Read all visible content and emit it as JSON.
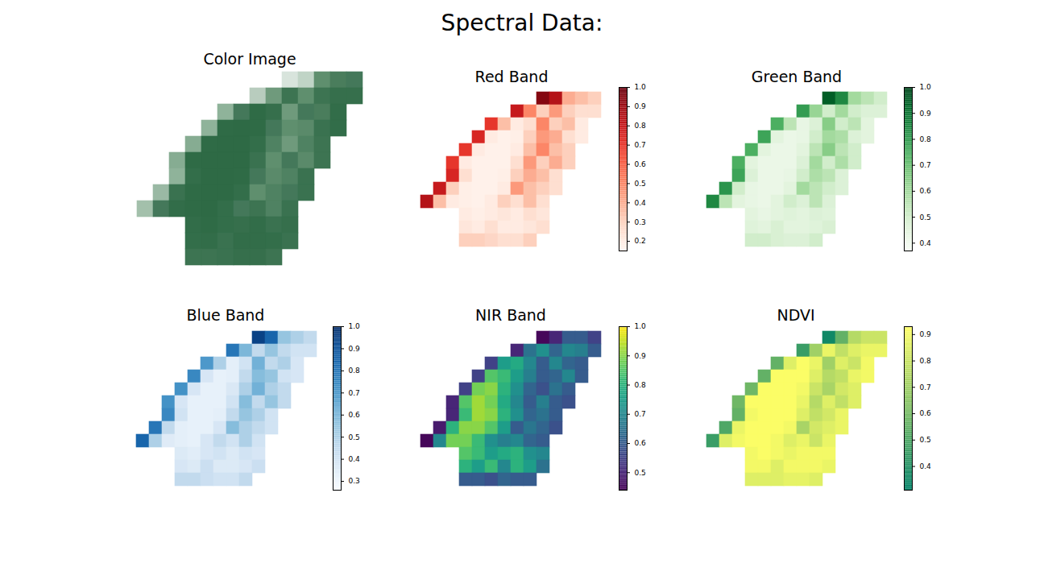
{
  "title": "Spectral Data:",
  "chart_data": [
    {
      "type": "image",
      "title": "Color Image",
      "tick_labels": false,
      "cells": [
        [
          null,
          null,
          null,
          null,
          null,
          null,
          null,
          null,
          null,
          "#d8e4dc",
          "#c0d4c6",
          "#5f8f6e",
          "#4a7d5c",
          "#44785a"
        ],
        [
          null,
          null,
          null,
          null,
          null,
          null,
          null,
          "#b8ccbe",
          "#6f9a7c",
          "#3d7452",
          "#5f8f6e",
          "#3d7452",
          "#366f4c",
          "#366f4c"
        ],
        [
          null,
          null,
          null,
          null,
          null,
          "#8fb39a",
          "#44785a",
          "#2f6b46",
          "#366f4c",
          "#6f9a7c",
          "#44785a",
          "#4a7d5c",
          "#326d49",
          null
        ],
        [
          null,
          null,
          null,
          null,
          "#8fb39a",
          "#2f6b46",
          "#2e6a45",
          "#2f6b46",
          "#44785a",
          "#5f8f6e",
          "#5a8a6a",
          "#3a7250",
          "#326d49",
          null
        ],
        [
          null,
          null,
          null,
          "#86ac92",
          "#2f6b46",
          "#2e6a45",
          "#2e6a45",
          "#336e4a",
          "#4f8262",
          "#6f9a7c",
          "#4f8262",
          "#3d7452",
          null,
          null
        ],
        [
          null,
          null,
          "#86ac92",
          "#2f6b46",
          "#2e6a45",
          "#2e6a45",
          "#2e6a45",
          "#3a7250",
          "#5f8f6e",
          "#44785a",
          "#5a8a6a",
          "#3d7452",
          null,
          null
        ],
        [
          null,
          null,
          "#8fb39a",
          "#336e4a",
          "#2e6a45",
          "#2e6a45",
          "#2f6b46",
          "#44785a",
          "#5a8a6a",
          "#4f8262",
          "#3a7250",
          null,
          null,
          null
        ],
        [
          null,
          "#9ab9a4",
          "#3a7250",
          "#2f6b46",
          "#2e6a45",
          "#2e6a45",
          "#336e4a",
          "#5f8f6e",
          "#4f8262",
          "#44785a",
          "#3a7250",
          null,
          null,
          null
        ],
        [
          "#a3c0ab",
          "#44785a",
          "#326d49",
          "#2f6b46",
          "#2e6a45",
          "#336e4a",
          "#44785a",
          "#3d7452",
          "#4f8262",
          "#3a7250",
          null,
          null,
          null,
          null
        ],
        [
          null,
          null,
          null,
          "#326d49",
          "#2f6b46",
          "#336e4a",
          "#366f4c",
          "#326d49",
          "#3a7250",
          "#366f4c",
          null,
          null,
          null,
          null
        ],
        [
          null,
          null,
          null,
          "#336e4a",
          "#326d49",
          "#3a7250",
          "#326d49",
          "#326d49",
          "#336e4a",
          "#3a7250",
          null,
          null,
          null,
          null
        ],
        [
          null,
          null,
          null,
          "#3d7452",
          "#3d7452",
          "#3a7250",
          "#366f4c",
          "#366f4c",
          "#3d7452",
          null,
          null,
          null,
          null,
          null
        ]
      ]
    },
    {
      "type": "heatmap",
      "title": "Red Band",
      "tick_labels": false,
      "color": "Reds",
      "colorbar_range": [
        0.15,
        1.0
      ],
      "colorbar_ticks": [
        0.2,
        0.3,
        0.4,
        0.5,
        0.6,
        0.7,
        0.8,
        0.9,
        {
          "value": 1.0,
          "label": "1.0"
        }
      ],
      "cells": [
        [
          null,
          null,
          null,
          null,
          null,
          null,
          null,
          null,
          null,
          0.95,
          0.85,
          0.4,
          0.35,
          0.3
        ],
        [
          null,
          null,
          null,
          null,
          null,
          null,
          null,
          0.8,
          0.5,
          0.3,
          0.45,
          0.3,
          0.25,
          0.25
        ],
        [
          null,
          null,
          null,
          null,
          null,
          0.7,
          0.35,
          0.2,
          0.25,
          0.5,
          0.3,
          0.35,
          0.2,
          null
        ],
        [
          null,
          null,
          null,
          null,
          0.75,
          0.2,
          0.17,
          0.18,
          0.3,
          0.45,
          0.4,
          0.25,
          0.2,
          null
        ],
        [
          null,
          null,
          null,
          0.7,
          0.2,
          0.17,
          0.17,
          0.2,
          0.35,
          0.5,
          0.35,
          0.3,
          null,
          null
        ],
        [
          null,
          null,
          0.7,
          0.2,
          0.17,
          0.17,
          0.17,
          0.25,
          0.45,
          0.3,
          0.4,
          0.3,
          null,
          null
        ],
        [
          null,
          null,
          0.75,
          0.25,
          0.17,
          0.17,
          0.18,
          0.3,
          0.4,
          0.35,
          0.25,
          null,
          null,
          null
        ],
        [
          null,
          0.8,
          0.3,
          0.18,
          0.17,
          0.17,
          0.2,
          0.45,
          0.35,
          0.3,
          0.25,
          null,
          null,
          null
        ],
        [
          0.85,
          0.35,
          0.2,
          0.18,
          0.17,
          0.2,
          0.3,
          0.25,
          0.35,
          0.25,
          null,
          null,
          null,
          null
        ],
        [
          null,
          null,
          null,
          0.2,
          0.18,
          0.2,
          0.22,
          0.2,
          0.25,
          0.22,
          null,
          null,
          null,
          null
        ],
        [
          null,
          null,
          null,
          0.22,
          0.2,
          0.25,
          0.2,
          0.2,
          0.22,
          0.25,
          null,
          null,
          null,
          null
        ],
        [
          null,
          null,
          null,
          0.3,
          0.3,
          0.28,
          0.25,
          0.25,
          0.3,
          null,
          null,
          null,
          null,
          null
        ]
      ]
    },
    {
      "type": "heatmap",
      "title": "Green Band",
      "tick_labels": false,
      "color": "Greens",
      "colorbar_range": [
        0.37,
        1.0
      ],
      "colorbar_ticks": [
        0.4,
        0.5,
        0.6,
        0.7,
        0.8,
        0.9,
        {
          "value": 1.0,
          "label": "1.0"
        }
      ],
      "cells": [
        [
          null,
          null,
          null,
          null,
          null,
          null,
          null,
          null,
          null,
          0.95,
          0.85,
          0.6,
          0.55,
          0.5
        ],
        [
          null,
          null,
          null,
          null,
          null,
          null,
          null,
          0.8,
          0.62,
          0.5,
          0.6,
          0.5,
          0.47,
          0.47
        ],
        [
          null,
          null,
          null,
          null,
          null,
          0.75,
          0.55,
          0.43,
          0.47,
          0.65,
          0.5,
          0.55,
          0.45,
          null
        ],
        [
          null,
          null,
          null,
          null,
          0.78,
          0.45,
          0.42,
          0.43,
          0.5,
          0.6,
          0.58,
          0.47,
          0.45,
          null
        ],
        [
          null,
          null,
          null,
          0.75,
          0.45,
          0.42,
          0.42,
          0.45,
          0.55,
          0.65,
          0.55,
          0.5,
          null,
          null
        ],
        [
          null,
          null,
          0.75,
          0.45,
          0.42,
          0.42,
          0.42,
          0.47,
          0.6,
          0.5,
          0.58,
          0.5,
          null,
          null
        ],
        [
          null,
          null,
          0.78,
          0.47,
          0.42,
          0.42,
          0.43,
          0.5,
          0.58,
          0.55,
          0.47,
          null,
          null,
          null
        ],
        [
          null,
          0.82,
          0.5,
          0.43,
          0.42,
          0.42,
          0.45,
          0.6,
          0.55,
          0.5,
          0.47,
          null,
          null,
          null
        ],
        [
          0.85,
          0.55,
          0.45,
          0.43,
          0.42,
          0.45,
          0.5,
          0.47,
          0.55,
          0.47,
          null,
          null,
          null,
          null
        ],
        [
          null,
          null,
          null,
          0.45,
          0.43,
          0.45,
          0.46,
          0.45,
          0.47,
          0.46,
          null,
          null,
          null,
          null
        ],
        [
          null,
          null,
          null,
          0.46,
          0.45,
          0.48,
          0.45,
          0.45,
          0.46,
          0.48,
          null,
          null,
          null,
          null
        ],
        [
          null,
          null,
          null,
          0.5,
          0.5,
          0.48,
          0.47,
          0.47,
          0.5,
          null,
          null,
          null,
          null,
          null
        ]
      ]
    },
    {
      "type": "heatmap",
      "title": "Blue Band",
      "tick_labels": false,
      "color": "Blues",
      "colorbar_range": [
        0.26,
        1.0
      ],
      "colorbar_ticks": [
        0.3,
        0.4,
        0.5,
        0.6,
        0.7,
        0.8,
        0.9,
        {
          "value": 1.0,
          "label": "1.0"
        }
      ],
      "cells": [
        [
          null,
          null,
          null,
          null,
          null,
          null,
          null,
          null,
          null,
          0.95,
          0.85,
          0.55,
          0.5,
          0.45
        ],
        [
          null,
          null,
          null,
          null,
          null,
          null,
          null,
          0.8,
          0.6,
          0.45,
          0.55,
          0.45,
          0.4,
          0.4
        ],
        [
          null,
          null,
          null,
          null,
          null,
          0.7,
          0.5,
          0.33,
          0.4,
          0.62,
          0.45,
          0.5,
          0.38,
          null
        ],
        [
          null,
          null,
          null,
          null,
          0.75,
          0.38,
          0.32,
          0.33,
          0.45,
          0.58,
          0.55,
          0.4,
          0.38,
          null
        ],
        [
          null,
          null,
          null,
          0.72,
          0.38,
          0.32,
          0.32,
          0.37,
          0.5,
          0.62,
          0.5,
          0.45,
          null,
          null
        ],
        [
          null,
          null,
          0.72,
          0.38,
          0.32,
          0.32,
          0.32,
          0.4,
          0.58,
          0.45,
          0.55,
          0.45,
          null,
          null
        ],
        [
          null,
          null,
          0.75,
          0.4,
          0.32,
          0.32,
          0.33,
          0.45,
          0.55,
          0.5,
          0.4,
          null,
          null,
          null
        ],
        [
          null,
          0.8,
          0.45,
          0.33,
          0.32,
          0.32,
          0.38,
          0.58,
          0.5,
          0.45,
          0.4,
          null,
          null,
          null
        ],
        [
          0.85,
          0.5,
          0.35,
          0.33,
          0.32,
          0.38,
          0.45,
          0.4,
          0.5,
          0.4,
          null,
          null,
          null,
          null
        ],
        [
          null,
          null,
          null,
          0.36,
          0.34,
          0.38,
          0.4,
          0.36,
          0.4,
          0.38,
          null,
          null,
          null,
          null
        ],
        [
          null,
          null,
          null,
          0.38,
          0.36,
          0.42,
          0.36,
          0.36,
          0.38,
          0.42,
          null,
          null,
          null,
          null
        ],
        [
          null,
          null,
          null,
          0.45,
          0.45,
          0.42,
          0.4,
          0.4,
          0.45,
          null,
          null,
          null,
          null,
          null
        ]
      ]
    },
    {
      "type": "heatmap",
      "title": "NIR Band",
      "tick_labels": false,
      "color": "Viridis",
      "colorbar_range": [
        0.44,
        1.0
      ],
      "colorbar_ticks": [
        0.5,
        0.6,
        0.7,
        0.8,
        0.9,
        {
          "value": 1.0,
          "label": "1.0"
        }
      ],
      "cells": [
        [
          null,
          null,
          null,
          null,
          null,
          null,
          null,
          null,
          null,
          0.45,
          0.5,
          0.6,
          0.6,
          0.55
        ],
        [
          null,
          null,
          null,
          null,
          null,
          null,
          null,
          0.5,
          0.65,
          0.72,
          0.62,
          0.7,
          0.68,
          0.6
        ],
        [
          null,
          null,
          null,
          null,
          null,
          0.55,
          0.75,
          0.78,
          0.7,
          0.6,
          0.7,
          0.62,
          0.6,
          null
        ],
        [
          null,
          null,
          null,
          null,
          0.55,
          0.85,
          0.82,
          0.75,
          0.68,
          0.6,
          0.62,
          0.7,
          0.6,
          null
        ],
        [
          null,
          null,
          null,
          0.55,
          0.88,
          0.9,
          0.8,
          0.72,
          0.62,
          0.58,
          0.65,
          0.6,
          null,
          null
        ],
        [
          null,
          null,
          0.5,
          0.85,
          0.92,
          0.88,
          0.78,
          0.7,
          0.6,
          0.68,
          0.6,
          0.58,
          null,
          null
        ],
        [
          null,
          null,
          0.5,
          0.82,
          0.92,
          0.9,
          0.8,
          0.72,
          0.62,
          0.65,
          0.6,
          null,
          null,
          null
        ],
        [
          null,
          0.48,
          0.8,
          0.9,
          0.9,
          0.85,
          0.75,
          0.6,
          0.66,
          0.62,
          0.58,
          null,
          null,
          null
        ],
        [
          0.45,
          0.7,
          0.88,
          0.88,
          0.82,
          0.72,
          0.68,
          0.7,
          0.62,
          0.6,
          null,
          null,
          null,
          null
        ],
        [
          null,
          null,
          null,
          0.85,
          0.82,
          0.75,
          0.78,
          0.8,
          0.72,
          0.7,
          null,
          null,
          null,
          null
        ],
        [
          null,
          null,
          null,
          0.8,
          0.75,
          0.82,
          0.7,
          0.8,
          0.75,
          0.65,
          null,
          null,
          null,
          null
        ],
        [
          null,
          null,
          null,
          0.6,
          0.6,
          0.58,
          0.62,
          0.6,
          0.6,
          null,
          null,
          null,
          null,
          null
        ]
      ]
    },
    {
      "type": "heatmap",
      "title": "NDVI",
      "tick_labels": false,
      "color": "summer",
      "colorbar_range": [
        0.31,
        0.93
      ],
      "colorbar_ticks": [
        0.4,
        0.5,
        0.6,
        0.7,
        0.8,
        0.9
      ],
      "cells": [
        [
          null,
          null,
          null,
          null,
          null,
          null,
          null,
          null,
          null,
          0.35,
          0.55,
          0.75,
          0.8,
          0.8
        ],
        [
          null,
          null,
          null,
          null,
          null,
          null,
          null,
          0.45,
          0.7,
          0.88,
          0.78,
          0.85,
          0.88,
          0.88
        ],
        [
          null,
          null,
          null,
          null,
          null,
          0.55,
          0.85,
          0.92,
          0.88,
          0.7,
          0.85,
          0.8,
          0.9,
          null
        ],
        [
          null,
          null,
          null,
          null,
          0.55,
          0.92,
          0.92,
          0.92,
          0.85,
          0.75,
          0.78,
          0.88,
          0.9,
          null
        ],
        [
          null,
          null,
          null,
          0.58,
          0.92,
          0.92,
          0.92,
          0.9,
          0.8,
          0.72,
          0.82,
          0.85,
          null,
          null
        ],
        [
          null,
          null,
          0.58,
          0.92,
          0.92,
          0.92,
          0.92,
          0.88,
          0.75,
          0.85,
          0.78,
          0.85,
          null,
          null
        ],
        [
          null,
          null,
          0.55,
          0.9,
          0.92,
          0.92,
          0.92,
          0.85,
          0.78,
          0.82,
          0.88,
          null,
          null,
          null
        ],
        [
          null,
          0.5,
          0.88,
          0.92,
          0.92,
          0.92,
          0.9,
          0.72,
          0.82,
          0.85,
          0.88,
          null,
          null,
          null
        ],
        [
          0.45,
          0.85,
          0.9,
          0.92,
          0.92,
          0.9,
          0.85,
          0.88,
          0.8,
          0.88,
          null,
          null,
          null,
          null
        ],
        [
          null,
          null,
          null,
          0.9,
          0.92,
          0.9,
          0.88,
          0.9,
          0.9,
          0.9,
          null,
          null,
          null,
          null
        ],
        [
          null,
          null,
          null,
          0.9,
          0.9,
          0.85,
          0.9,
          0.9,
          0.9,
          0.88,
          null,
          null,
          null,
          null
        ],
        [
          null,
          null,
          null,
          0.85,
          0.85,
          0.85,
          0.87,
          0.87,
          0.85,
          null,
          null,
          null,
          null,
          null
        ]
      ]
    }
  ]
}
